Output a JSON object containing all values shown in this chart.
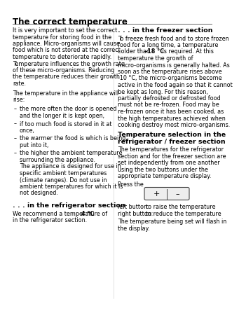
{
  "title": "The correct temperature",
  "bg_color": "#ffffff",
  "text_color": "#000000",
  "left_para1_lines": [
    "It is very important to set the correct",
    "temperature for storing food in the",
    "appliance. Micro-organisms will cause",
    "food which is not stored at the correct",
    "temperature to deteriorate rapidly.",
    "Temperature influences the growth rate",
    "of these micro-organisms. Reducing",
    "the temperature reduces their growth",
    "rate."
  ],
  "left_para2_lines": [
    "The temperature in the appliance will",
    "rise:"
  ],
  "bullets": [
    [
      "the more often the door is opened",
      "and the longer it is kept open,"
    ],
    [
      "if too much food is stored in it at",
      "once,"
    ],
    [
      "the warmer the food is which is being",
      "put into it,"
    ],
    [
      "the higher the ambient temperature",
      "surrounding the appliance.",
      "The appliance is designed for use in",
      "specific ambient temperatures",
      "(climate ranges). Do not use in",
      "ambient temperatures for which it is",
      "not designed."
    ]
  ],
  "refrig_title": ". . . in the refrigerator section",
  "refrig_lines": [
    "We recommend a temperature of 4 °C",
    "in the refrigerator section."
  ],
  "refrig_bold_prefix": "We recommend a temperature of ",
  "refrig_bold_text": "4 °C",
  "refrig_bold_suffix": "",
  "freezer_title": ". . . in the freezer section",
  "freezer_line1": "To freeze fresh food and to store frozen",
  "freezer_line2": "food for a long time, a temperature",
  "freezer_line3_pre": "colder than ",
  "freezer_line3_bold": "-18 °C",
  "freezer_line3_post": " is required. At this",
  "freezer_rest_lines": [
    "temperature the growth of",
    "micro-organisms is generally halted. As",
    "soon as the temperature rises above",
    "-10 °C, the micro-organisms become",
    "active in the food again so that it cannot",
    "be kept as long. For this reason,",
    "partially defrosted or defrosted food",
    "must not be re-frozen. Food may be",
    "re-frozen once it has been cooked, as",
    "the high temperatures achieved when",
    "cooking destroy most micro-organisms."
  ],
  "temp_sel_title1": "Temperature selection in the",
  "temp_sel_title2": "refrigerator / freezer section",
  "temp_sel_lines": [
    "The temperatures for the refrigerator",
    "section and for the freezer section are",
    "set independently from one another",
    "using the two buttons under the",
    "appropriate temperature display."
  ],
  "press_text": "Press the",
  "btn_plus": "+",
  "btn_minus": "–",
  "left_btn_label": "left button:",
  "left_btn_action": "to raise the temperature",
  "right_btn_label": "right button:",
  "right_btn_action": "to reduce the temperature",
  "flash_lines": [
    "The temperature being set will flash in",
    "the display."
  ]
}
